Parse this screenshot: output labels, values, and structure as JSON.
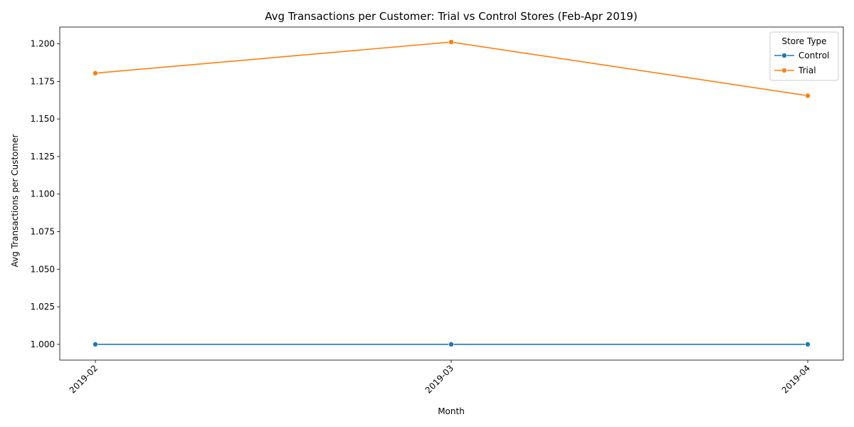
{
  "chart_data": {
    "type": "line",
    "title": "Avg Transactions per Customer: Trial vs Control Stores (Feb-Apr 2019)",
    "xlabel": "Month",
    "ylabel": "Avg Transactions per Customer",
    "categories": [
      "2019-02",
      "2019-03",
      "2019-04"
    ],
    "series": [
      {
        "name": "Control",
        "color": "#1f77b4",
        "values": [
          1.0,
          1.0,
          1.0
        ]
      },
      {
        "name": "Trial",
        "color": "#ff7f0e",
        "values": [
          1.1805,
          1.2012,
          1.1655
        ]
      }
    ],
    "ylim": [
      0.9895,
      1.2112
    ],
    "yticks": [
      1.0,
      1.025,
      1.05,
      1.075,
      1.1,
      1.125,
      1.15,
      1.175,
      1.2
    ],
    "ytick_labels": [
      "1.000",
      "1.025",
      "1.050",
      "1.075",
      "1.100",
      "1.125",
      "1.150",
      "1.175",
      "1.200"
    ],
    "legend": {
      "title": "Store Type",
      "placement": "top-right"
    },
    "grid": false
  }
}
